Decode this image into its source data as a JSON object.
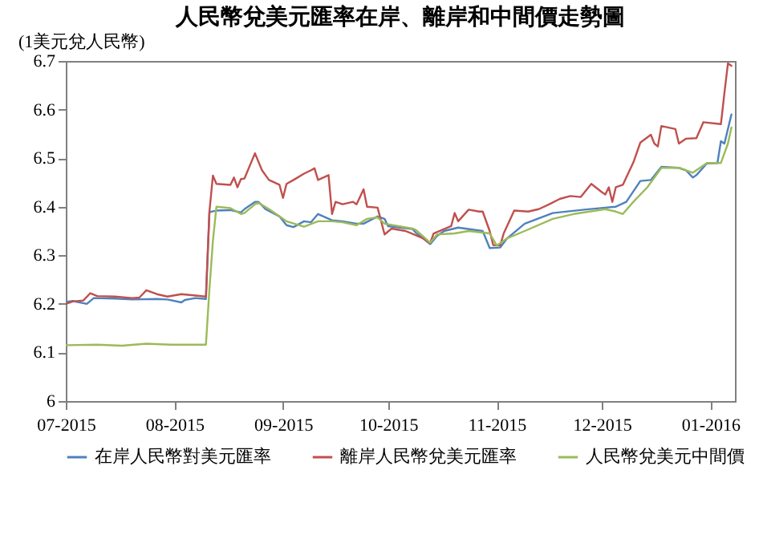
{
  "chart_data": {
    "type": "line",
    "title": "人民幣兌美元匯率在岸、離岸和中間價走勢圖",
    "ylabel": "(1美元兌人民幣)",
    "xlim": [
      "2015-07-01",
      "2016-01-08"
    ],
    "xticks": [
      {
        "value": "2015-07-01",
        "label": "07-2015"
      },
      {
        "value": "2015-08-01",
        "label": "08-2015"
      },
      {
        "value": "2015-09-01",
        "label": "09-2015"
      },
      {
        "value": "2015-10-01",
        "label": "10-2015"
      },
      {
        "value": "2015-11-01",
        "label": "11-2015"
      },
      {
        "value": "2015-12-01",
        "label": "12-2015"
      },
      {
        "value": "2016-01-01",
        "label": "01-2016"
      }
    ],
    "ylim": [
      6,
      6.7
    ],
    "yticks": [
      6,
      6.1,
      6.2,
      6.3,
      6.4,
      6.5,
      6.6,
      6.7
    ],
    "legend": "bottom",
    "series": [
      {
        "name": "在岸人民幣對美元匯率",
        "color": "#4f81bd",
        "x": [
          "2015-07-01",
          "2015-07-03",
          "2015-07-07",
          "2015-07-09",
          "2015-07-15",
          "2015-07-20",
          "2015-07-27",
          "2015-07-30",
          "2015-08-03",
          "2015-08-04",
          "2015-08-07",
          "2015-08-10",
          "2015-08-11",
          "2015-08-13",
          "2015-08-17",
          "2015-08-20",
          "2015-08-21",
          "2015-08-24",
          "2015-08-25",
          "2015-08-27",
          "2015-08-31",
          "2015-09-02",
          "2015-09-04",
          "2015-09-07",
          "2015-09-09",
          "2015-09-11",
          "2015-09-15",
          "2015-09-18",
          "2015-09-22",
          "2015-09-24",
          "2015-09-28",
          "2015-09-30",
          "2015-10-01",
          "2015-10-08",
          "2015-10-09",
          "2015-10-13",
          "2015-10-15",
          "2015-10-17",
          "2015-10-21",
          "2015-10-28",
          "2015-10-30",
          "2015-11-02",
          "2015-11-04",
          "2015-11-09",
          "2015-11-17",
          "2015-11-26",
          "2015-12-02",
          "2015-12-05",
          "2015-12-08",
          "2015-12-12",
          "2015-12-15",
          "2015-12-18",
          "2015-12-23",
          "2015-12-25",
          "2015-12-27",
          "2015-12-28",
          "2015-12-31",
          "2016-01-03",
          "2016-01-04",
          "2016-01-05",
          "2016-01-07"
        ],
        "values": [
          6.204,
          6.206,
          6.2,
          6.212,
          6.211,
          6.209,
          6.21,
          6.209,
          6.203,
          6.208,
          6.212,
          6.21,
          6.389,
          6.392,
          6.393,
          6.388,
          6.395,
          6.41,
          6.41,
          6.395,
          6.38,
          6.362,
          6.358,
          6.37,
          6.368,
          6.385,
          6.372,
          6.37,
          6.365,
          6.365,
          6.38,
          6.375,
          6.36,
          6.354,
          6.346,
          6.323,
          6.34,
          6.35,
          6.357,
          6.35,
          6.315,
          6.316,
          6.335,
          6.365,
          6.387,
          6.394,
          6.398,
          6.4,
          6.41,
          6.453,
          6.455,
          6.482,
          6.48,
          6.475,
          6.46,
          6.465,
          6.489,
          6.49,
          6.535,
          6.53,
          6.59
        ]
      },
      {
        "name": "離岸人民幣兌美元匯率",
        "color": "#c0504d",
        "x": [
          "2015-07-01",
          "2015-07-03",
          "2015-07-06",
          "2015-07-08",
          "2015-07-10",
          "2015-07-15",
          "2015-07-20",
          "2015-07-22",
          "2015-07-24",
          "2015-07-27",
          "2015-07-30",
          "2015-08-03",
          "2015-08-06",
          "2015-08-10",
          "2015-08-11",
          "2015-08-12",
          "2015-08-13",
          "2015-08-17",
          "2015-08-18",
          "2015-08-19",
          "2015-08-20",
          "2015-08-21",
          "2015-08-24",
          "2015-08-26",
          "2015-08-28",
          "2015-08-31",
          "2015-09-01",
          "2015-09-02",
          "2015-09-04",
          "2015-09-07",
          "2015-09-09",
          "2015-09-10",
          "2015-09-11",
          "2015-09-14",
          "2015-09-15",
          "2015-09-16",
          "2015-09-18",
          "2015-09-21",
          "2015-09-22",
          "2015-09-24",
          "2015-09-25",
          "2015-09-28",
          "2015-09-30",
          "2015-10-02",
          "2015-10-06",
          "2015-10-11",
          "2015-10-13",
          "2015-10-14",
          "2015-10-19",
          "2015-10-20",
          "2015-10-21",
          "2015-10-24",
          "2015-10-27",
          "2015-10-28",
          "2015-10-30",
          "2015-10-31",
          "2015-11-02",
          "2015-11-03",
          "2015-11-06",
          "2015-11-10",
          "2015-11-13",
          "2015-11-16",
          "2015-11-19",
          "2015-11-22",
          "2015-11-25",
          "2015-11-28",
          "2015-12-01",
          "2015-12-02",
          "2015-12-03",
          "2015-12-04",
          "2015-12-05",
          "2015-12-07",
          "2015-12-10",
          "2015-12-12",
          "2015-12-15",
          "2015-12-16",
          "2015-12-17",
          "2015-12-18",
          "2015-12-22",
          "2015-12-23",
          "2015-12-25",
          "2015-12-28",
          "2015-12-30",
          "2016-01-04",
          "2016-01-05",
          "2016-01-06",
          "2016-01-07"
        ],
        "values": [
          6.2,
          6.205,
          6.207,
          6.222,
          6.216,
          6.215,
          6.212,
          6.213,
          6.228,
          6.22,
          6.215,
          6.22,
          6.218,
          6.215,
          6.39,
          6.464,
          6.447,
          6.445,
          6.46,
          6.44,
          6.457,
          6.458,
          6.51,
          6.475,
          6.455,
          6.445,
          6.418,
          6.447,
          6.455,
          6.468,
          6.475,
          6.479,
          6.455,
          6.465,
          6.385,
          6.41,
          6.405,
          6.41,
          6.405,
          6.436,
          6.4,
          6.398,
          6.343,
          6.355,
          6.35,
          6.335,
          6.325,
          6.345,
          6.36,
          6.387,
          6.37,
          6.394,
          6.39,
          6.39,
          6.35,
          6.321,
          6.32,
          6.345,
          6.392,
          6.39,
          6.395,
          6.405,
          6.416,
          6.422,
          6.42,
          6.447,
          6.43,
          6.425,
          6.44,
          6.41,
          6.44,
          6.445,
          6.491,
          6.532,
          6.548,
          6.53,
          6.524,
          6.566,
          6.56,
          6.53,
          6.54,
          6.541,
          6.574,
          6.57,
          6.634,
          6.695,
          6.69
        ]
      },
      {
        "name": "人民幣兌美元中間價",
        "color": "#9bbb59",
        "x": [
          "2015-07-01",
          "2015-07-10",
          "2015-07-17",
          "2015-07-24",
          "2015-07-31",
          "2015-08-07",
          "2015-08-10",
          "2015-08-11",
          "2015-08-12",
          "2015-08-13",
          "2015-08-17",
          "2015-08-20",
          "2015-08-21",
          "2015-08-24",
          "2015-08-25",
          "2015-08-28",
          "2015-08-31",
          "2015-09-02",
          "2015-09-07",
          "2015-09-11",
          "2015-09-15",
          "2015-09-18",
          "2015-09-22",
          "2015-09-25",
          "2015-09-28",
          "2015-09-30",
          "2015-10-08",
          "2015-10-09",
          "2015-10-13",
          "2015-10-15",
          "2015-10-20",
          "2015-10-24",
          "2015-10-30",
          "2015-11-01",
          "2015-11-04",
          "2015-11-09",
          "2015-11-17",
          "2015-11-23",
          "2015-12-02",
          "2015-12-05",
          "2015-12-07",
          "2015-12-10",
          "2015-12-14",
          "2015-12-18",
          "2015-12-23",
          "2015-12-27",
          "2015-12-31",
          "2016-01-04",
          "2016-01-06",
          "2016-01-07"
        ],
        "values": [
          6.115,
          6.116,
          6.114,
          6.118,
          6.116,
          6.116,
          6.116,
          6.23,
          6.33,
          6.4,
          6.397,
          6.385,
          6.387,
          6.405,
          6.408,
          6.395,
          6.38,
          6.37,
          6.359,
          6.37,
          6.37,
          6.368,
          6.362,
          6.375,
          6.378,
          6.365,
          6.355,
          6.352,
          6.326,
          6.343,
          6.345,
          6.35,
          6.345,
          6.32,
          6.335,
          6.35,
          6.375,
          6.385,
          6.395,
          6.39,
          6.385,
          6.41,
          6.44,
          6.48,
          6.48,
          6.47,
          6.49,
          6.49,
          6.53,
          6.563
        ]
      }
    ]
  }
}
